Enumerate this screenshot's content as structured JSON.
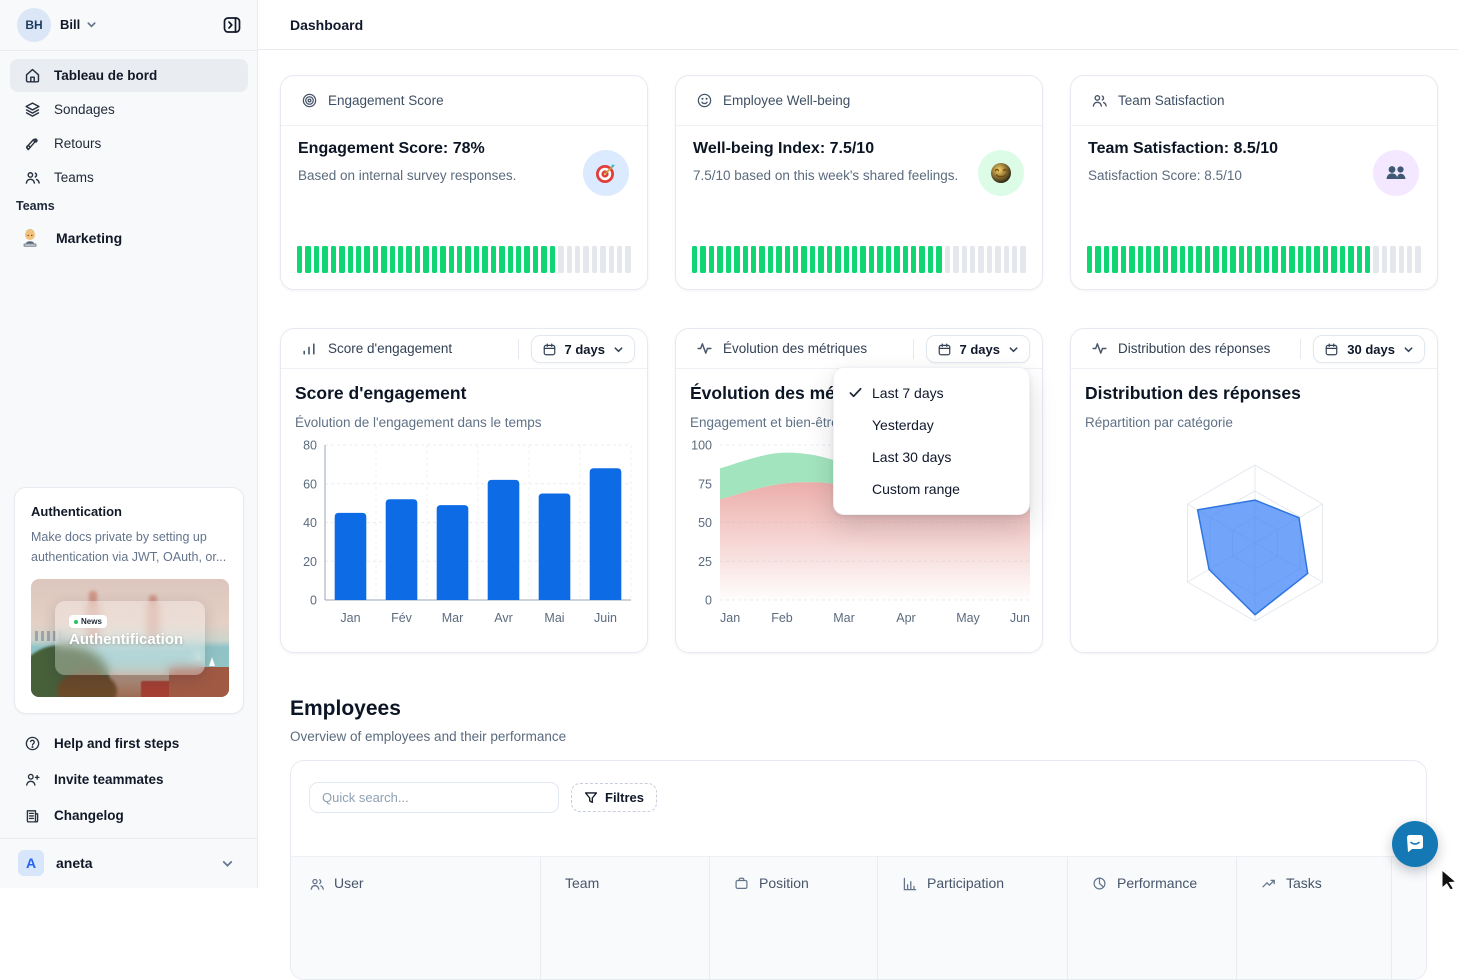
{
  "colors": {
    "accent_blue": "#0d6ce5",
    "progress_green": "#10d573",
    "radar_fill": "#3b82f6",
    "area_green": "#9de3b9",
    "area_pink": "#e79a95",
    "chat_blue": "#1478b5"
  },
  "sidebar": {
    "user": {
      "initials": "BH",
      "name": "Bill"
    },
    "nav": [
      {
        "label": "Tableau de bord",
        "icon": "home-icon",
        "active": true
      },
      {
        "label": "Sondages",
        "icon": "layers-icon",
        "active": false
      },
      {
        "label": "Retours",
        "icon": "megaphone-icon",
        "active": false
      },
      {
        "label": "Teams",
        "icon": "users-icon",
        "active": false
      }
    ],
    "teams_section": {
      "label": "Teams",
      "items": [
        {
          "label": "Marketing",
          "icon": "technologist-emoji"
        }
      ]
    },
    "auth_card": {
      "title": "Authentication",
      "body": "Make docs private by setting up authentication via JWT, OAuth, or...",
      "badge": "News",
      "image_title": "Authentification"
    },
    "footer_nav": [
      {
        "label": "Help and first steps",
        "icon": "help-icon"
      },
      {
        "label": "Invite teammates",
        "icon": "user-plus-icon"
      },
      {
        "label": "Changelog",
        "icon": "changelog-icon"
      }
    ],
    "workspace": {
      "initial": "A",
      "name": "aneta"
    }
  },
  "header": {
    "title": "Dashboard"
  },
  "stat_cards": [
    {
      "header": "Engagement Score",
      "header_icon": "target-icon",
      "title": "Engagement Score: 78%",
      "subtitle": "Based on internal survey responses.",
      "emoji": "dart-target-emoji",
      "emoji_bg": "#dbeafe",
      "progress_pct": 78
    },
    {
      "header": "Employee Well-being",
      "header_icon": "smiley-icon",
      "title": "Well-being Index: 7.5/10",
      "subtitle": "7.5/10 based on this week's shared feelings.",
      "emoji": "smiling-face-emoji",
      "emoji_bg": "#dcfce7",
      "progress_pct": 75
    },
    {
      "header": "Team Satisfaction",
      "header_icon": "users-icon",
      "title": "Team Satisfaction: 8.5/10",
      "subtitle": "Satisfaction Score: 8.5/10",
      "emoji": "busts-emoji",
      "emoji_bg": "#f3e8ff",
      "progress_pct": 85
    }
  ],
  "chart_cards": [
    {
      "header": "Score d'engagement",
      "header_icon": "bar-chart-icon",
      "range_label": "7 days"
    },
    {
      "header": "Évolution des métriques",
      "header_icon": "activity-icon",
      "range_label": "7 days"
    },
    {
      "header": "Distribution des réponses",
      "header_icon": "activity-icon",
      "range_label": "30 days"
    }
  ],
  "dropdown_menu": {
    "items": [
      {
        "label": "Last 7 days",
        "checked": true
      },
      {
        "label": "Yesterday",
        "checked": false
      },
      {
        "label": "Last 30 days",
        "checked": false
      },
      {
        "label": "Custom range",
        "checked": false
      }
    ]
  },
  "employees": {
    "title": "Employees",
    "subtitle": "Overview of employees and their performance",
    "search_placeholder": "Quick search...",
    "filter_label": "Filtres",
    "columns": [
      {
        "label": "User",
        "icon": "users-icon"
      },
      {
        "label": "Team",
        "icon": ""
      },
      {
        "label": "Position",
        "icon": "briefcase-icon"
      },
      {
        "label": "Participation",
        "icon": "column-chart-icon"
      },
      {
        "label": "Performance",
        "icon": "pie-chart-icon"
      },
      {
        "label": "Tasks",
        "icon": "trend-up-icon"
      }
    ]
  },
  "chart_data": [
    {
      "type": "bar",
      "title": "Score d'engagement",
      "subtitle": "Évolution de l'engagement dans le temps",
      "categories": [
        "Jan",
        "Fév",
        "Mar",
        "Avr",
        "Mai",
        "Juin"
      ],
      "values": [
        45,
        52,
        49,
        62,
        55,
        68
      ],
      "ylim": [
        0,
        80
      ],
      "yticks": [
        0,
        20,
        40,
        60,
        80
      ],
      "bar_color": "#0d6ce5",
      "grid": "dashed"
    },
    {
      "type": "area",
      "title": "Évolution des métriques",
      "subtitle": "Engagement et bien-être",
      "x": [
        "Jan",
        "Feb",
        "Mar",
        "Apr",
        "May",
        "Jun"
      ],
      "series": [
        {
          "name": "engagement",
          "color": "#9de3b9",
          "values": [
            85,
            95,
            88,
            65,
            72,
            80
          ]
        },
        {
          "name": "bien-être",
          "color": "#e79a95",
          "values": [
            65,
            75,
            74,
            60,
            66,
            70
          ]
        }
      ],
      "ylim": [
        0,
        100
      ],
      "yticks": [
        0,
        25,
        50,
        75,
        100
      ],
      "grid": "dashed"
    },
    {
      "type": "radar",
      "title": "Distribution des réponses",
      "subtitle": "Répartition par catégorie",
      "axes": 6,
      "rings": 3,
      "values_pct": [
        55,
        65,
        78,
        92,
        68,
        85
      ],
      "fill": "#3b82f6",
      "max": 100
    }
  ]
}
